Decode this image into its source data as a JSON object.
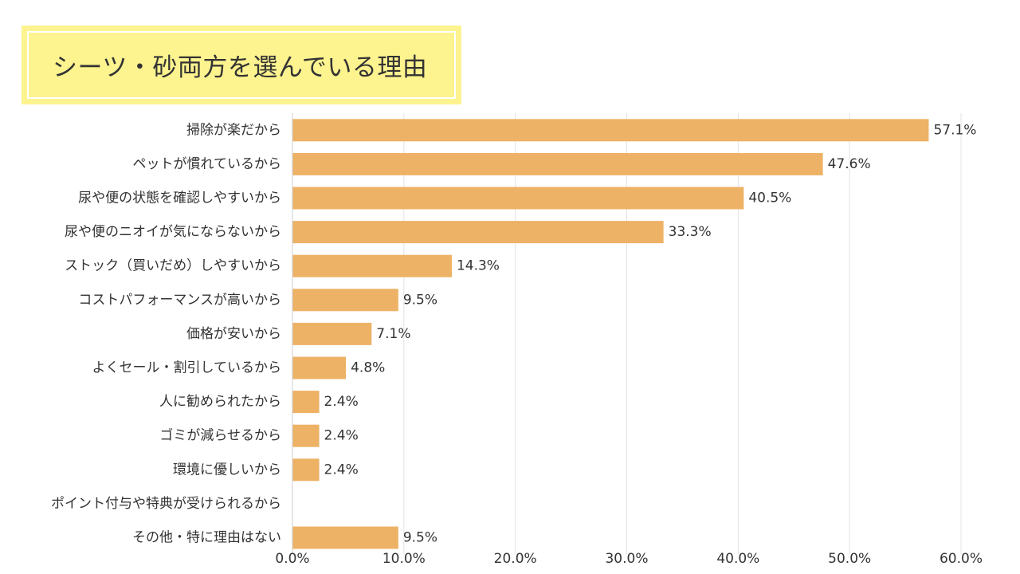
{
  "title": "シーツ・砂両方を選んでいる理由",
  "chart_data": {
    "type": "bar",
    "orientation": "horizontal",
    "categories": [
      "掃除が楽だから",
      "ペットが慣れているから",
      "尿や便の状態を確認しやすいから",
      "尿や便のニオイが気にならないから",
      "ストック（買いだめ）しやすいから",
      "コストパフォーマンスが高いから",
      "価格が安いから",
      "よくセール・割引しているから",
      "人に勧められたから",
      "ゴミが減らせるから",
      "環境に優しいから",
      "ポイント付与や特典が受けられるから",
      "その他・特に理由はない"
    ],
    "values": [
      57.1,
      47.6,
      40.5,
      33.3,
      14.3,
      9.5,
      7.1,
      4.8,
      2.4,
      2.4,
      2.4,
      0,
      9.5
    ],
    "value_labels": [
      "57.1%",
      "47.6%",
      "40.5%",
      "33.3%",
      "14.3%",
      "9.5%",
      "7.1%",
      "4.8%",
      "2.4%",
      "2.4%",
      "2.4%",
      "",
      "9.5%"
    ],
    "xlim": [
      0,
      60
    ],
    "xticks": [
      0,
      10,
      20,
      30,
      40,
      50,
      60
    ],
    "xtick_labels": [
      "0.0%",
      "10.0%",
      "20.0%",
      "30.0%",
      "40.0%",
      "50.0%",
      "60.0%"
    ],
    "bar_color": "#edb265",
    "grid": true,
    "grid_color": "#e3e3e3",
    "axis_color": "#cccccc"
  }
}
